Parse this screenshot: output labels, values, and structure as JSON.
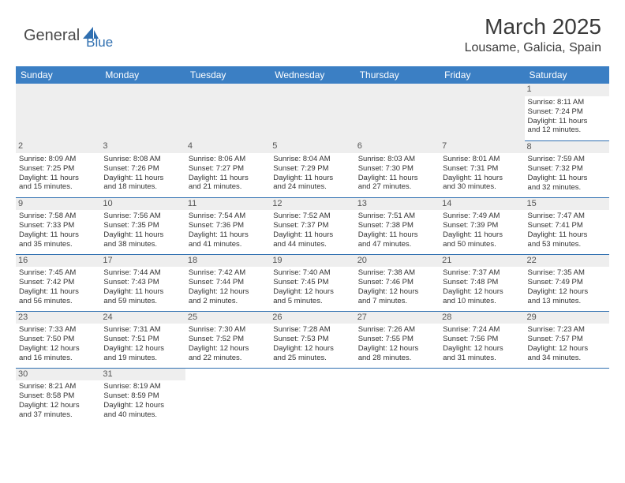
{
  "brand": {
    "part1": "General",
    "part2": "Blue",
    "logo_color": "#2f6fb0",
    "text_color": "#4a4a4a"
  },
  "title": {
    "month": "March 2025",
    "location": "Lousame, Galicia, Spain"
  },
  "colors": {
    "header_bg": "#3b7fc4",
    "row_border": "#2f6fb0",
    "daynum_bg": "#eeeeee"
  },
  "weekdays": [
    "Sunday",
    "Monday",
    "Tuesday",
    "Wednesday",
    "Thursday",
    "Friday",
    "Saturday"
  ],
  "weeks": [
    [
      null,
      null,
      null,
      null,
      null,
      null,
      {
        "n": "1",
        "sr": "Sunrise: 8:11 AM",
        "ss": "Sunset: 7:24 PM",
        "d1": "Daylight: 11 hours",
        "d2": "and 12 minutes."
      }
    ],
    [
      {
        "n": "2",
        "sr": "Sunrise: 8:09 AM",
        "ss": "Sunset: 7:25 PM",
        "d1": "Daylight: 11 hours",
        "d2": "and 15 minutes."
      },
      {
        "n": "3",
        "sr": "Sunrise: 8:08 AM",
        "ss": "Sunset: 7:26 PM",
        "d1": "Daylight: 11 hours",
        "d2": "and 18 minutes."
      },
      {
        "n": "4",
        "sr": "Sunrise: 8:06 AM",
        "ss": "Sunset: 7:27 PM",
        "d1": "Daylight: 11 hours",
        "d2": "and 21 minutes."
      },
      {
        "n": "5",
        "sr": "Sunrise: 8:04 AM",
        "ss": "Sunset: 7:29 PM",
        "d1": "Daylight: 11 hours",
        "d2": "and 24 minutes."
      },
      {
        "n": "6",
        "sr": "Sunrise: 8:03 AM",
        "ss": "Sunset: 7:30 PM",
        "d1": "Daylight: 11 hours",
        "d2": "and 27 minutes."
      },
      {
        "n": "7",
        "sr": "Sunrise: 8:01 AM",
        "ss": "Sunset: 7:31 PM",
        "d1": "Daylight: 11 hours",
        "d2": "and 30 minutes."
      },
      {
        "n": "8",
        "sr": "Sunrise: 7:59 AM",
        "ss": "Sunset: 7:32 PM",
        "d1": "Daylight: 11 hours",
        "d2": "and 32 minutes."
      }
    ],
    [
      {
        "n": "9",
        "sr": "Sunrise: 7:58 AM",
        "ss": "Sunset: 7:33 PM",
        "d1": "Daylight: 11 hours",
        "d2": "and 35 minutes."
      },
      {
        "n": "10",
        "sr": "Sunrise: 7:56 AM",
        "ss": "Sunset: 7:35 PM",
        "d1": "Daylight: 11 hours",
        "d2": "and 38 minutes."
      },
      {
        "n": "11",
        "sr": "Sunrise: 7:54 AM",
        "ss": "Sunset: 7:36 PM",
        "d1": "Daylight: 11 hours",
        "d2": "and 41 minutes."
      },
      {
        "n": "12",
        "sr": "Sunrise: 7:52 AM",
        "ss": "Sunset: 7:37 PM",
        "d1": "Daylight: 11 hours",
        "d2": "and 44 minutes."
      },
      {
        "n": "13",
        "sr": "Sunrise: 7:51 AM",
        "ss": "Sunset: 7:38 PM",
        "d1": "Daylight: 11 hours",
        "d2": "and 47 minutes."
      },
      {
        "n": "14",
        "sr": "Sunrise: 7:49 AM",
        "ss": "Sunset: 7:39 PM",
        "d1": "Daylight: 11 hours",
        "d2": "and 50 minutes."
      },
      {
        "n": "15",
        "sr": "Sunrise: 7:47 AM",
        "ss": "Sunset: 7:41 PM",
        "d1": "Daylight: 11 hours",
        "d2": "and 53 minutes."
      }
    ],
    [
      {
        "n": "16",
        "sr": "Sunrise: 7:45 AM",
        "ss": "Sunset: 7:42 PM",
        "d1": "Daylight: 11 hours",
        "d2": "and 56 minutes."
      },
      {
        "n": "17",
        "sr": "Sunrise: 7:44 AM",
        "ss": "Sunset: 7:43 PM",
        "d1": "Daylight: 11 hours",
        "d2": "and 59 minutes."
      },
      {
        "n": "18",
        "sr": "Sunrise: 7:42 AM",
        "ss": "Sunset: 7:44 PM",
        "d1": "Daylight: 12 hours",
        "d2": "and 2 minutes."
      },
      {
        "n": "19",
        "sr": "Sunrise: 7:40 AM",
        "ss": "Sunset: 7:45 PM",
        "d1": "Daylight: 12 hours",
        "d2": "and 5 minutes."
      },
      {
        "n": "20",
        "sr": "Sunrise: 7:38 AM",
        "ss": "Sunset: 7:46 PM",
        "d1": "Daylight: 12 hours",
        "d2": "and 7 minutes."
      },
      {
        "n": "21",
        "sr": "Sunrise: 7:37 AM",
        "ss": "Sunset: 7:48 PM",
        "d1": "Daylight: 12 hours",
        "d2": "and 10 minutes."
      },
      {
        "n": "22",
        "sr": "Sunrise: 7:35 AM",
        "ss": "Sunset: 7:49 PM",
        "d1": "Daylight: 12 hours",
        "d2": "and 13 minutes."
      }
    ],
    [
      {
        "n": "23",
        "sr": "Sunrise: 7:33 AM",
        "ss": "Sunset: 7:50 PM",
        "d1": "Daylight: 12 hours",
        "d2": "and 16 minutes."
      },
      {
        "n": "24",
        "sr": "Sunrise: 7:31 AM",
        "ss": "Sunset: 7:51 PM",
        "d1": "Daylight: 12 hours",
        "d2": "and 19 minutes."
      },
      {
        "n": "25",
        "sr": "Sunrise: 7:30 AM",
        "ss": "Sunset: 7:52 PM",
        "d1": "Daylight: 12 hours",
        "d2": "and 22 minutes."
      },
      {
        "n": "26",
        "sr": "Sunrise: 7:28 AM",
        "ss": "Sunset: 7:53 PM",
        "d1": "Daylight: 12 hours",
        "d2": "and 25 minutes."
      },
      {
        "n": "27",
        "sr": "Sunrise: 7:26 AM",
        "ss": "Sunset: 7:55 PM",
        "d1": "Daylight: 12 hours",
        "d2": "and 28 minutes."
      },
      {
        "n": "28",
        "sr": "Sunrise: 7:24 AM",
        "ss": "Sunset: 7:56 PM",
        "d1": "Daylight: 12 hours",
        "d2": "and 31 minutes."
      },
      {
        "n": "29",
        "sr": "Sunrise: 7:23 AM",
        "ss": "Sunset: 7:57 PM",
        "d1": "Daylight: 12 hours",
        "d2": "and 34 minutes."
      }
    ],
    [
      {
        "n": "30",
        "sr": "Sunrise: 8:21 AM",
        "ss": "Sunset: 8:58 PM",
        "d1": "Daylight: 12 hours",
        "d2": "and 37 minutes."
      },
      {
        "n": "31",
        "sr": "Sunrise: 8:19 AM",
        "ss": "Sunset: 8:59 PM",
        "d1": "Daylight: 12 hours",
        "d2": "and 40 minutes."
      },
      null,
      null,
      null,
      null,
      null
    ]
  ]
}
